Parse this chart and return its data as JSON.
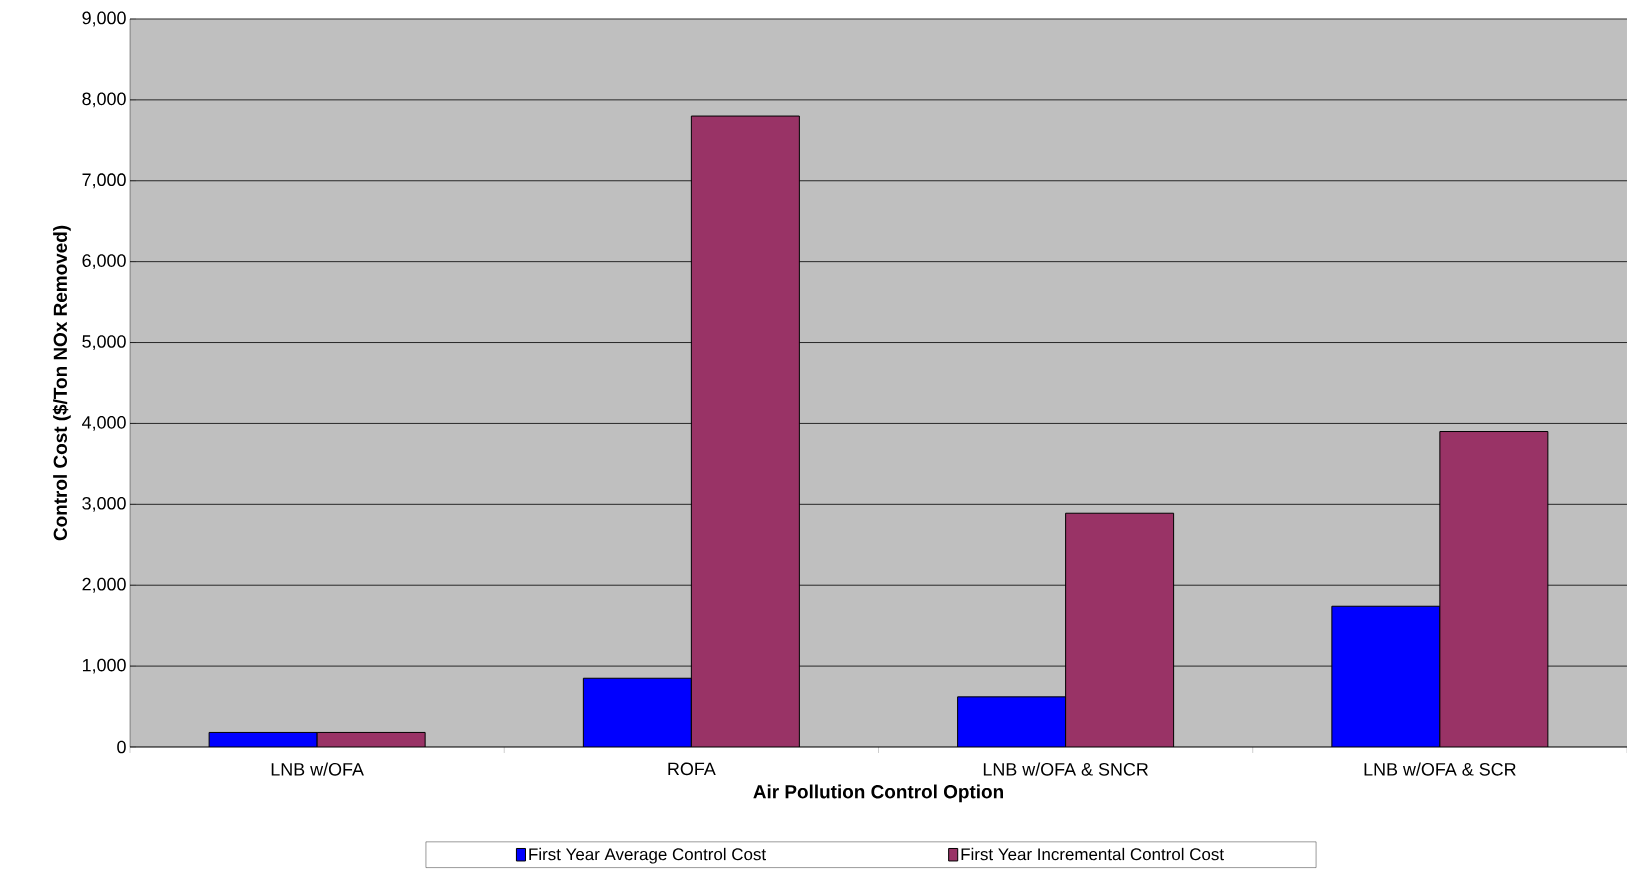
{
  "chart_data": {
    "type": "bar",
    "xlabel": "Air Pollution Control Option",
    "ylabel": "Control Cost ($/Ton NOx Removed)",
    "categories": [
      "LNB w/OFA",
      "ROFA",
      "LNB w/OFA & SNCR",
      "LNB w/OFA & SCR"
    ],
    "series": [
      {
        "name": "First Year Average Control Cost",
        "color": "#0000ff",
        "values": [
          180,
          850,
          620,
          1740
        ]
      },
      {
        "name": "First Year Incremental Control Cost",
        "color": "#993366",
        "values": [
          180,
          7800,
          2890,
          3900
        ]
      }
    ],
    "ylim": [
      0,
      9000
    ],
    "yticks": [
      {
        "value": 0,
        "label": "0"
      },
      {
        "value": 1000,
        "label": "1,000"
      },
      {
        "value": 2000,
        "label": "2,000"
      },
      {
        "value": 3000,
        "label": "3,000"
      },
      {
        "value": 4000,
        "label": "4,000"
      },
      {
        "value": 5000,
        "label": "5,000"
      },
      {
        "value": 6000,
        "label": "6,000"
      },
      {
        "value": 7000,
        "label": "7,000"
      },
      {
        "value": 8000,
        "label": "8,000"
      },
      {
        "value": 9000,
        "label": "9,000"
      }
    ],
    "grid": "y",
    "legend": "bottom"
  }
}
